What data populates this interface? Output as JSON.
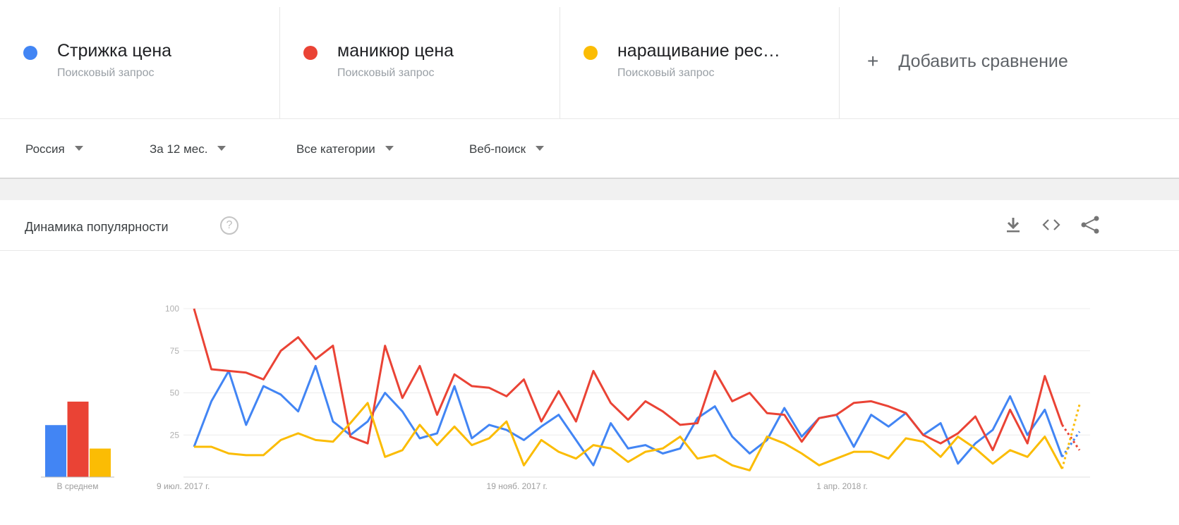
{
  "terms": [
    {
      "name": "Стрижка цена",
      "type": "Поисковый запрос",
      "color": "#4285f4"
    },
    {
      "name": "маникюр цена",
      "type": "Поисковый запрос",
      "color": "#ea4335"
    },
    {
      "name": "наращивание рес…",
      "type": "Поисковый запрос",
      "color": "#fbbc04"
    }
  ],
  "add_comparison": "Добавить сравнение",
  "filters": {
    "region": "Россия",
    "period": "За 12 мес.",
    "category": "Все категории",
    "search_type": "Веб-поиск"
  },
  "section": {
    "title": "Динамика популярности",
    "help": "?"
  },
  "icons": [
    "download-icon",
    "embed-icon",
    "share-icon"
  ],
  "chart_data": {
    "type": "line",
    "ylim": [
      0,
      100
    ],
    "yticks": [
      25,
      50,
      75,
      100
    ],
    "xtick_labels": [
      "9 июл. 2017 г.",
      "19 нояб. 2017 г.",
      "1 апр. 2018 г."
    ],
    "xtick_index": [
      0,
      19,
      38
    ],
    "grid": true,
    "series": [
      {
        "name": "Стрижка цена",
        "color": "#4285f4",
        "values": [
          18,
          45,
          63,
          31,
          54,
          49,
          39,
          66,
          33,
          25,
          33,
          50,
          39,
          23,
          26,
          54,
          23,
          31,
          28,
          22,
          30,
          37,
          22,
          7,
          32,
          17,
          19,
          14,
          17,
          35,
          42,
          24,
          14,
          22,
          41,
          24,
          35,
          37,
          18,
          37,
          30,
          38,
          25,
          32,
          8,
          20,
          28,
          48,
          25,
          40,
          12,
          27
        ],
        "partial_from": 50
      },
      {
        "name": "маникюр цена",
        "color": "#ea4335",
        "values": [
          100,
          64,
          63,
          62,
          58,
          75,
          83,
          70,
          78,
          24,
          20,
          78,
          47,
          66,
          37,
          61,
          54,
          53,
          48,
          58,
          33,
          51,
          33,
          63,
          44,
          34,
          45,
          39,
          31,
          32,
          63,
          45,
          50,
          38,
          37,
          21,
          35,
          37,
          44,
          45,
          42,
          38,
          25,
          20,
          26,
          36,
          16,
          40,
          20,
          60,
          31,
          16
        ],
        "partial_from": 50
      },
      {
        "name": "наращивание рес…",
        "color": "#fbbc04",
        "values": [
          18,
          18,
          14,
          13,
          13,
          22,
          26,
          22,
          21,
          32,
          44,
          12,
          16,
          31,
          19,
          30,
          19,
          23,
          33,
          7,
          22,
          15,
          11,
          19,
          17,
          9,
          15,
          17,
          24,
          11,
          13,
          7,
          4,
          24,
          20,
          14,
          7,
          11,
          15,
          15,
          11,
          23,
          21,
          12,
          24,
          17,
          8,
          16,
          12,
          24,
          5,
          43
        ],
        "partial_from": 50
      }
    ],
    "average": {
      "label": "В среднем",
      "values": [
        31,
        45,
        17
      ]
    }
  }
}
